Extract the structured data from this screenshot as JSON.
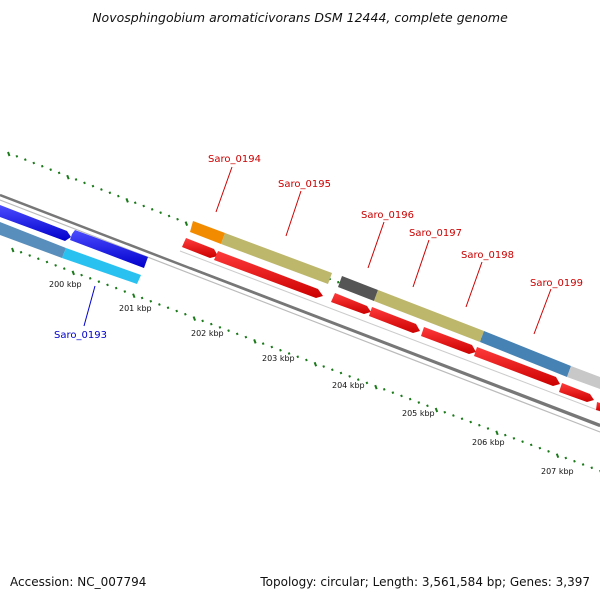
{
  "title": "Novosphingobium aromaticivorans DSM 12444, complete genome",
  "footer": {
    "accession": "Accession: NC_007794",
    "summary": "Topology: circular; Length: 3,561,584 bp; Genes: 3,397"
  },
  "genes": [
    {
      "label": "Saro_0193",
      "color": "#1a1aee",
      "strand": "forward",
      "label_color": "#0000cc"
    },
    {
      "label": "Saro_0194",
      "color": "#f28b00",
      "strand": "forward",
      "label_color": "#cc0000"
    },
    {
      "label": "Saro_0195",
      "color": "#bdb76b",
      "strand": "forward",
      "label_color": "#cc0000"
    },
    {
      "label": "Saro_0196",
      "color": "#555555",
      "strand": "forward",
      "label_color": "#cc0000"
    },
    {
      "label": "Saro_0197",
      "color": "#bdb76b",
      "strand": "forward",
      "label_color": "#cc0000"
    },
    {
      "label": "Saro_0198",
      "color": "#bdb76b",
      "strand": "forward",
      "label_color": "#cc0000"
    },
    {
      "label": "Saro_0199",
      "color": "#4682b4",
      "strand": "forward",
      "label_color": "#cc0000"
    }
  ],
  "ruler_ticks": [
    "200 kbp",
    "201 kbp",
    "202 kbp",
    "203 kbp",
    "204 kbp",
    "205 kbp",
    "206 kbp",
    "207 kbp"
  ],
  "colors": {
    "cds_reverse": "#ee1111",
    "backbone": "#888888",
    "tick_green": "#1a7a1a",
    "track_cyan": "#29c2f0",
    "track_steel": "#4682b4",
    "track_blue": "#1a1aee"
  }
}
